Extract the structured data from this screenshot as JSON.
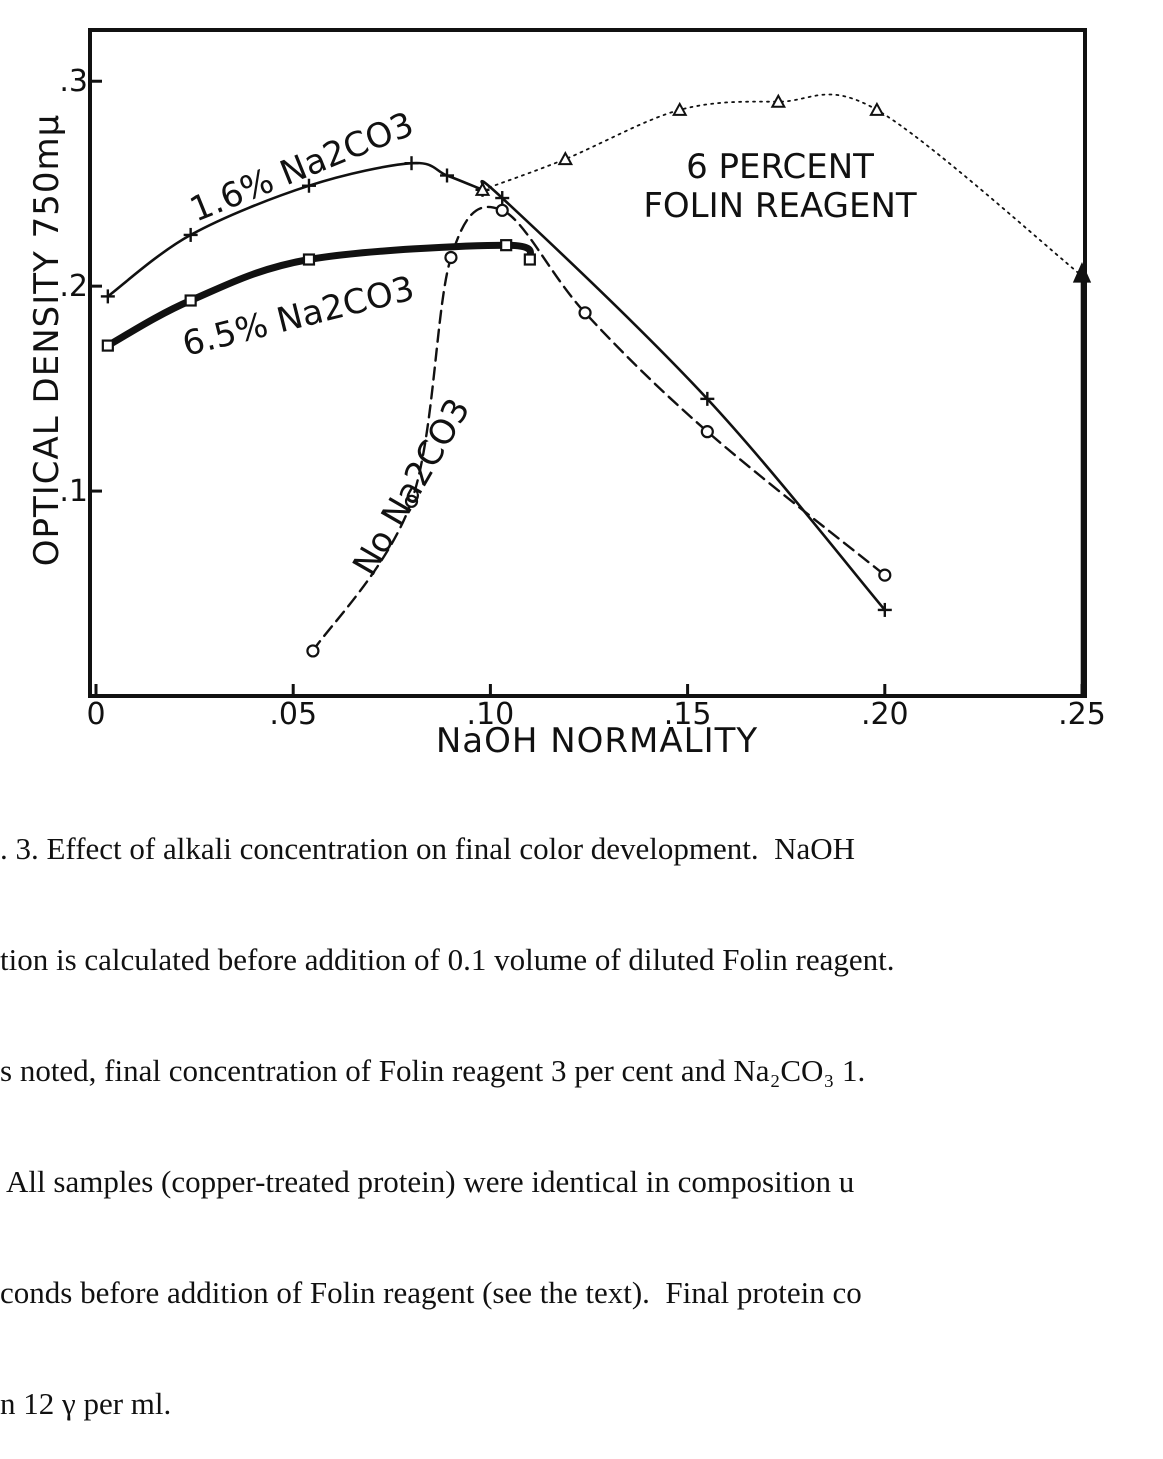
{
  "chart_data": {
    "type": "line",
    "xlabel": "NaOH NORMALITY",
    "ylabel": "OPTICAL DENSITY 750mμ",
    "xlim": [
      0,
      0.25
    ],
    "ylim": [
      0,
      0.325
    ],
    "x_ticks": [
      0,
      0.05,
      0.1,
      0.15,
      0.2,
      0.25
    ],
    "x_tick_labels": [
      "0",
      ".05",
      ".10",
      ".15",
      ".20",
      ".25"
    ],
    "y_ticks": [
      0.1,
      0.2,
      0.3
    ],
    "y_tick_labels": [
      ".1",
      ".2",
      ".3"
    ],
    "grid": false,
    "series": [
      {
        "name": "1.6% Na2CO3",
        "marker": "plus",
        "line": "solid",
        "points": [
          [
            0.003,
            0.195
          ],
          [
            0.024,
            0.225
          ],
          [
            0.054,
            0.249
          ],
          [
            0.08,
            0.26
          ],
          [
            0.089,
            0.254
          ],
          [
            0.098,
            0.247
          ],
          [
            0.103,
            0.243
          ],
          [
            0.155,
            0.145
          ],
          [
            0.2,
            0.042
          ]
        ]
      },
      {
        "name": "6.5% Na2CO3",
        "marker": "square",
        "line": "thick",
        "points": [
          [
            0.003,
            0.171
          ],
          [
            0.024,
            0.193
          ],
          [
            0.054,
            0.213
          ],
          [
            0.104,
            0.22
          ],
          [
            0.11,
            0.213
          ]
        ]
      },
      {
        "name": "No Na2CO3",
        "marker": "circle",
        "line": "dashed",
        "points": [
          [
            0.055,
            0.022
          ],
          [
            0.08,
            0.095
          ],
          [
            0.09,
            0.214
          ],
          [
            0.103,
            0.237
          ],
          [
            0.124,
            0.187
          ],
          [
            0.155,
            0.129
          ],
          [
            0.2,
            0.059
          ]
        ]
      },
      {
        "name": "6 PERCENT FOLIN REAGENT",
        "marker": "triangle",
        "line": "dotted",
        "points": [
          [
            0.098,
            0.247
          ],
          [
            0.119,
            0.262
          ],
          [
            0.148,
            0.286
          ],
          [
            0.173,
            0.29
          ],
          [
            0.198,
            0.286
          ],
          [
            0.25,
            0.205
          ]
        ]
      }
    ],
    "labels": {
      "s16": "1.6% Na2CO3",
      "s65": "6.5% Na2CO3",
      "sno": "No Na2CO3",
      "folin1": "6 PERCENT",
      "folin2": "FOLIN REAGENT"
    }
  },
  "caption": {
    "lines": [
      ". 3. Effect of alkali concentration on final color development.  NaOH",
      "tion is calculated before addition of 0.1 volume of diluted Folin reagent.",
      "s noted, final concentration of Folin reagent 3 per cent and Na₂CO₃ 1.",
      " All samples (copper-treated protein) were identical in composition u",
      "conds before addition of Folin reagent (see the text).  Final protein co",
      "n 12 γ per ml."
    ]
  }
}
